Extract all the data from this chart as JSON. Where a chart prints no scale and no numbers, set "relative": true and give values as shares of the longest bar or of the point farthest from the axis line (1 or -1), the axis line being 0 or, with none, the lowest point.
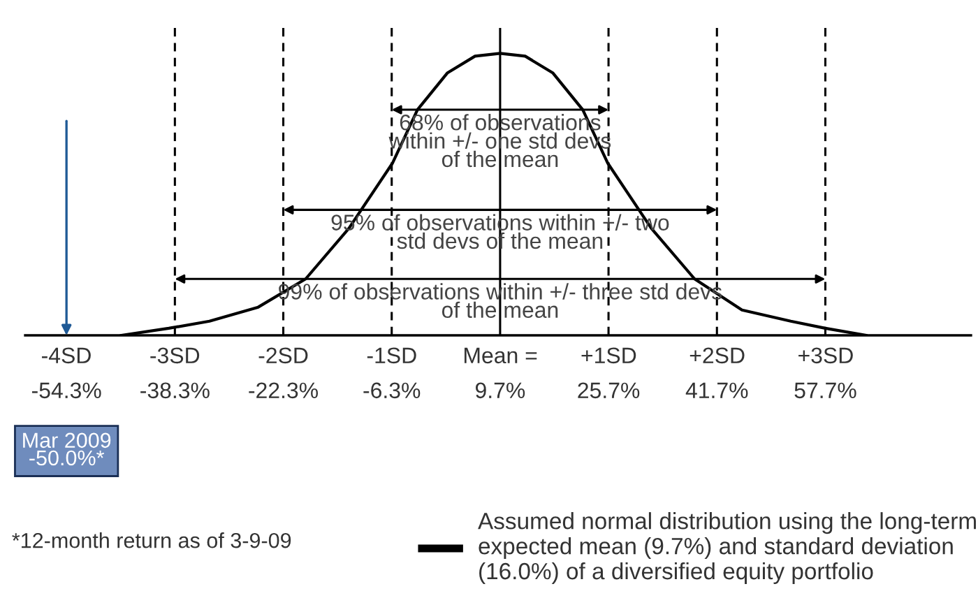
{
  "chart_data": {
    "type": "line",
    "relative": true,
    "series": [
      {
        "name": "Assumed normal distribution using the long-term\nexpected mean (9.7%) and standard deviation\n(16.0%) of a diversified equity portfolio",
        "color": "#000000",
        "x": [
          -46.2,
          -39.2,
          -33.2,
          -26.0,
          -19.0,
          -12.6,
          -6.2,
          -2.5,
          1.9,
          6.0,
          9.7,
          13.4,
          17.5,
          21.9,
          25.6,
          32.0,
          38.4,
          45.4,
          52.6,
          57.7,
          63.7
        ],
        "values": [
          0,
          0.025,
          0.05,
          0.1,
          0.2,
          0.38,
          0.61,
          0.8,
          0.93,
          0.99,
          1,
          0.99,
          0.93,
          0.8,
          0.61,
          0.38,
          0.2,
          0.09,
          0.05,
          0.025,
          0
        ]
      }
    ],
    "xlim": [
      -60.4,
      79.2
    ],
    "xticks": [
      {
        "value": -54.3,
        "label": "-54.3%"
      },
      {
        "value": -38.3,
        "label": "-38.3%"
      },
      {
        "value": -22.3,
        "label": "-22.3%"
      },
      {
        "value": -6.3,
        "label": "-6.3%"
      },
      {
        "value": 9.7,
        "label": "9.7%"
      },
      {
        "value": 25.7,
        "label": "25.7%"
      },
      {
        "value": 41.7,
        "label": "41.7%"
      },
      {
        "value": 57.7,
        "label": "57.7%"
      }
    ],
    "x2lim": [
      -4.38,
      4.34
    ],
    "x2ticks": [
      {
        "value": -4,
        "label": "-4SD"
      },
      {
        "value": -3,
        "label": "-3SD"
      },
      {
        "value": -2,
        "label": "-2SD"
      },
      {
        "value": -1,
        "label": "-1SD"
      },
      {
        "value": 0,
        "label": "Mean ="
      },
      {
        "value": 1,
        "label": "+1SD"
      },
      {
        "value": 2,
        "label": "+2SD"
      },
      {
        "value": 3,
        "label": "+3SD"
      }
    ],
    "ref_lines": [
      {
        "axis": "x",
        "value": -38.3,
        "line_style": "dashed"
      },
      {
        "axis": "x",
        "value": -22.3,
        "line_style": "dashed"
      },
      {
        "axis": "x",
        "value": -6.3,
        "line_style": "dashed"
      },
      {
        "axis": "x",
        "value": 9.7,
        "line_style": "solid"
      },
      {
        "axis": "x",
        "value": 25.7,
        "line_style": "dashed"
      },
      {
        "axis": "x",
        "value": 41.7,
        "line_style": "dashed"
      },
      {
        "axis": "x",
        "value": 57.7,
        "line_style": "dashed"
      }
    ],
    "annotations": [
      "68% of observations\nwithin +/- one std devs\nof the mean",
      "95% of observations within +/- two\nstd devs of the mean",
      "99% of observations within +/- three std devs\nof the mean",
      "Mar 2009\n-50.0%*",
      "*12-month return as of 3-9-09"
    ],
    "legend": "bottom",
    "marker": "none",
    "line_style": "solid",
    "grid": false
  }
}
